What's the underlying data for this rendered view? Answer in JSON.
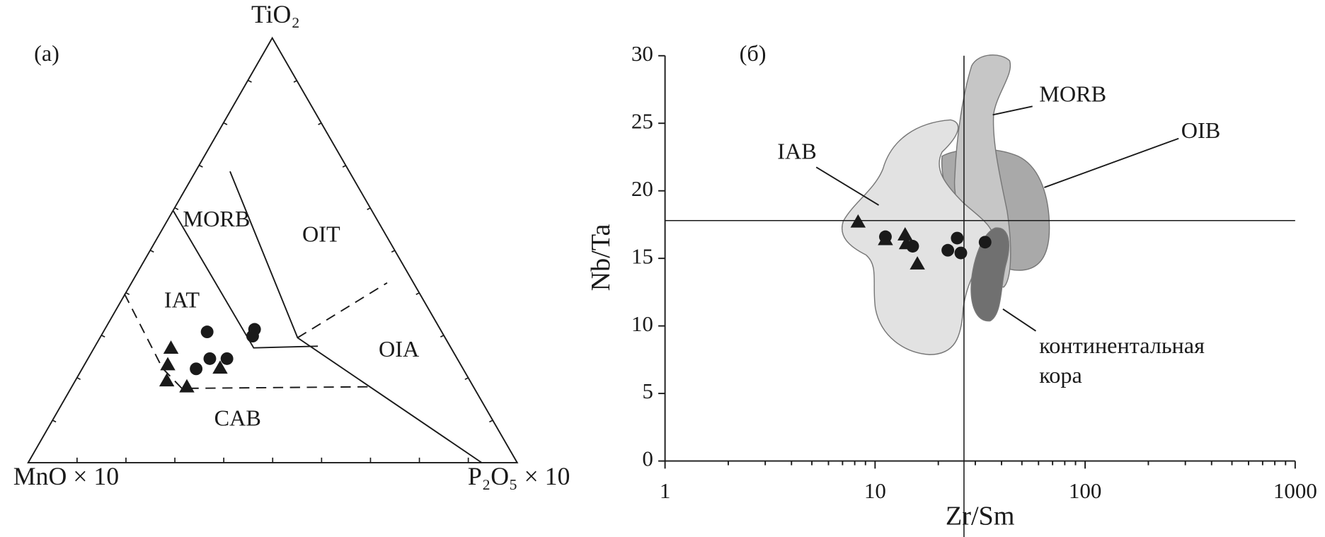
{
  "chart_data": [
    {
      "type": "ternary",
      "label": "(a)",
      "vertices": {
        "top": "TiO₂",
        "left": "MnO × 10",
        "right": "P₂O₅ × 10"
      },
      "ticks": [
        10,
        20,
        30,
        40,
        50,
        60,
        70,
        80,
        90
      ],
      "fields": [
        "MORB",
        "OIT",
        "IAT",
        "OIA",
        "CAB"
      ],
      "series": [
        {
          "marker": "circle",
          "color": "#1a1a1a",
          "TiO2": [
            30.8,
            31.4,
            29.8,
            22.1,
            24.5,
            24.5
          ],
          "MnO": [
            48.0,
            38.0,
            39.2,
            54.6,
            50.6,
            47.1
          ],
          "P2O5": [
            21.2,
            30.6,
            31.0,
            23.3,
            24.9,
            28.4
          ]
        },
        {
          "marker": "triangle",
          "color": "#1a1a1a",
          "TiO2": [
            27.0,
            23.1,
            19.3,
            17.9,
            22.3
          ],
          "MnO": [
            57.3,
            59.9,
            62.0,
            58.6,
            49.6
          ],
          "P2O5": [
            15.7,
            17.0,
            18.7,
            23.5,
            28.1
          ]
        }
      ]
    },
    {
      "type": "scatter",
      "label": "(б)",
      "xlabel": "Zr/Sm",
      "ylabel": "Nb/Ta",
      "xscale": "log",
      "xlim": [
        1,
        1000
      ],
      "xticks": [
        1,
        10,
        100,
        1000
      ],
      "xminor_ticks": [
        2,
        3,
        4,
        5,
        6,
        7,
        8,
        9,
        20,
        30,
        40,
        50,
        60,
        70,
        80,
        90,
        200,
        300,
        400,
        500,
        600,
        700,
        800,
        900
      ],
      "ylim": [
        0,
        30
      ],
      "yticks": [
        0,
        5,
        10,
        15,
        20,
        25,
        30
      ],
      "reference_lines": {
        "x": 26.5,
        "y": 17.8
      },
      "fields": [
        "MORB",
        "OIB",
        "IAB"
      ],
      "crust_label": [
        "континентальная",
        "кора"
      ],
      "series": [
        {
          "marker": "circle",
          "color": "#1a1a1a",
          "x": [
            11.2,
            15.1,
            22.2,
            24.6,
            25.6,
            33.4
          ],
          "y": [
            16.6,
            15.9,
            15.6,
            16.5,
            15.4,
            16.2
          ]
        },
        {
          "marker": "triangle",
          "color": "#1a1a1a",
          "x": [
            8.3,
            11.2,
            13.9,
            14.1,
            15.9
          ],
          "y": [
            17.7,
            16.4,
            16.75,
            16.1,
            14.6
          ]
        }
      ]
    }
  ]
}
